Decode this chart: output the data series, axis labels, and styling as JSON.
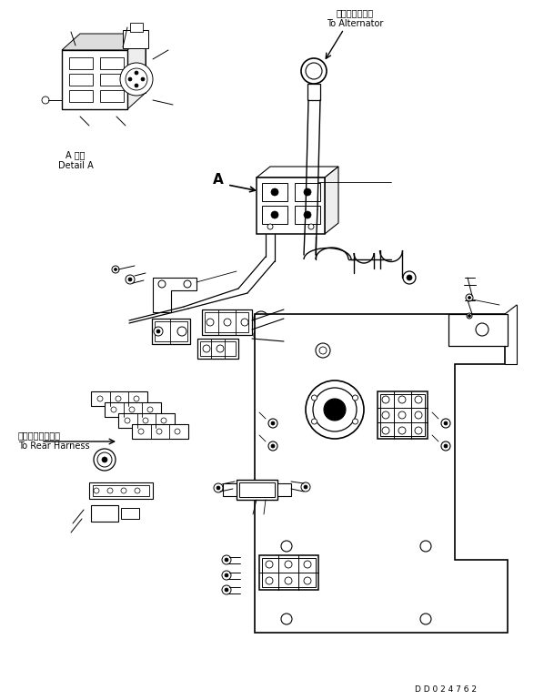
{
  "background_color": "#ffffff",
  "fig_width": 6.09,
  "fig_height": 7.69,
  "dpi": 100,
  "label_alternator_jp": "オルタネータへ",
  "label_alternator_en": "To Alternator",
  "label_detail_jp": "A 詳細",
  "label_detail_en": "Detail A",
  "label_rear_jp": "リヤーハーネスへ",
  "label_rear_en": "To Rear Harness",
  "label_A": "A",
  "part_number": "D D 0 2 4 7 6 2",
  "line_color": "#000000",
  "lw": 0.8,
  "font_size_small": 6.5,
  "font_size_label": 7.5
}
